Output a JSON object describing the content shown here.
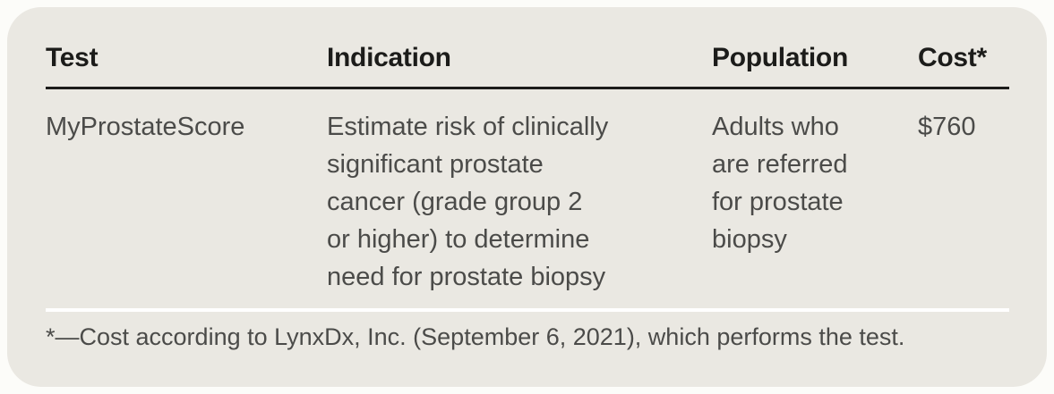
{
  "colors": {
    "page_background": "#fcfcf9",
    "card_background": "#eae8e2",
    "header_text": "#1c1c1a",
    "body_text": "#4b4b49",
    "header_rule": "#1c1c1a",
    "footnote_rule": "#ffffff"
  },
  "table": {
    "columns": [
      {
        "label": "Test"
      },
      {
        "label": "Indication"
      },
      {
        "label": "Population"
      },
      {
        "label": "Cost*"
      }
    ],
    "rows": [
      {
        "test": "MyProstateScore",
        "indication": "Estimate risk of clinically\nsignificant prostate\ncancer (grade group 2\nor higher) to determine\nneed for prostate biopsy",
        "population": "Adults who\nare referred\nfor prostate\nbiopsy",
        "cost": "$760"
      }
    ],
    "footnote": "*—Cost according to LynxDx, Inc. (September 6, 2021), which performs the test."
  }
}
